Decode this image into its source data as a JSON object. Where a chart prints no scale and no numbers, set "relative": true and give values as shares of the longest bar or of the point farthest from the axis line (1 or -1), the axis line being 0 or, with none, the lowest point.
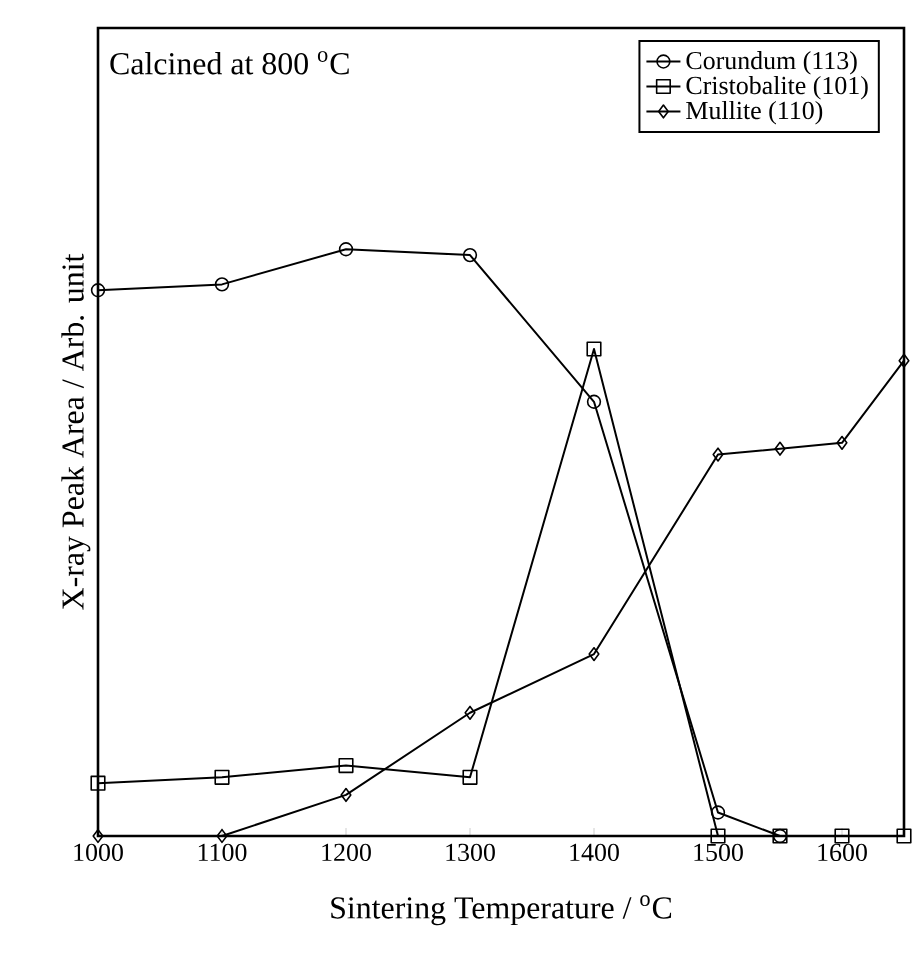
{
  "chart_data": {
    "type": "line",
    "relative": true,
    "xlabel": "Sintering Temperature / $^{o}$C",
    "ylabel": "X-ray Peak Area / Arb. unit",
    "annotations": [
      "Calcined at 800 $^{o}$C"
    ],
    "x": [
      1000,
      1100,
      1200,
      1300,
      1400,
      1500,
      1550,
      1600,
      1650
    ],
    "xlim": [
      1000,
      1650
    ],
    "xticks": [
      1000,
      1100,
      1200,
      1300,
      1400,
      1500,
      1600
    ],
    "legend": "top right",
    "line_style": "solid",
    "grid": false,
    "series": [
      {
        "name": "Corundum (113)",
        "color": "#000000",
        "marker": "circle",
        "values": [
          0.93,
          0.94,
          1,
          0.99,
          0.74,
          0.04,
          0,
          null,
          null
        ]
      },
      {
        "name": "Cristobalite (101)",
        "color": "#000000",
        "marker": "square",
        "values": [
          0.09,
          0.1,
          0.12,
          0.1,
          0.83,
          0,
          0,
          0,
          0
        ]
      },
      {
        "name": "Mullite (110)",
        "color": "#000000",
        "marker": "diamond",
        "values": [
          0,
          0,
          0.07,
          0.21,
          0.31,
          0.65,
          0.66,
          0.67,
          0.81
        ]
      }
    ]
  }
}
